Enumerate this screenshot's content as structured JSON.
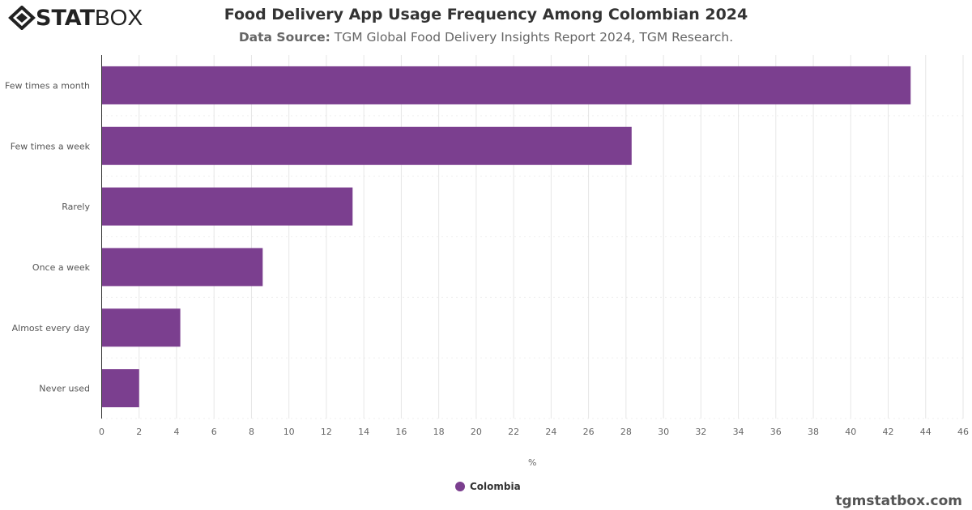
{
  "header": {
    "logo_text": "STATBOX",
    "title": "Food Delivery App Usage Frequency Among Colombian 2024",
    "subtitle_label": "Data Source:",
    "subtitle_text": " TGM Global Food Delivery Insights Report 2024, TGM Research."
  },
  "footer": {
    "site": "tgmstatbox.com"
  },
  "chart_data": {
    "type": "bar",
    "orientation": "horizontal",
    "title": "Food Delivery App Usage Frequency Among Colombian 2024",
    "xlabel": "%",
    "ylabel": "",
    "categories": [
      "Few times a month",
      "Few times a week",
      "Rarely",
      "Once a week",
      "Almost every day",
      "Never used"
    ],
    "series": [
      {
        "name": "Colombia",
        "color": "#7b3f8f",
        "values": [
          43.2,
          28.3,
          13.4,
          8.6,
          4.2,
          2.0
        ]
      }
    ],
    "xlim": [
      0,
      46
    ],
    "xticks": [
      0,
      2,
      4,
      6,
      8,
      10,
      12,
      14,
      16,
      18,
      20,
      22,
      24,
      26,
      28,
      30,
      32,
      34,
      36,
      38,
      40,
      42,
      44,
      46
    ],
    "grid": true,
    "legend": "bottom"
  }
}
